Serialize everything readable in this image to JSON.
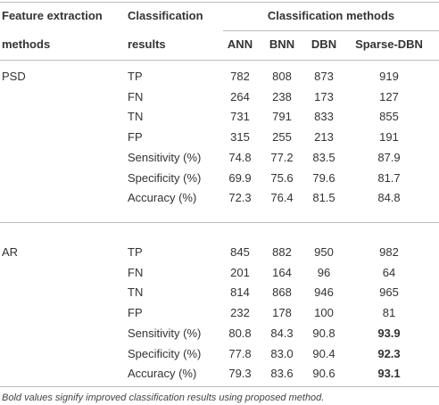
{
  "table": {
    "header": {
      "row1": [
        "Feature extraction",
        "Classification",
        "Classification methods"
      ],
      "row2": [
        "methods",
        "results",
        "ANN",
        "BNN",
        "DBN",
        "Sparse-DBN"
      ]
    },
    "groups": [
      {
        "name": "PSD",
        "rows": [
          {
            "label": "TP",
            "values": [
              "782",
              "808",
              "873",
              "919"
            ]
          },
          {
            "label": "FN",
            "values": [
              "264",
              "238",
              "173",
              "127"
            ]
          },
          {
            "label": "TN",
            "values": [
              "731",
              "791",
              "833",
              "855"
            ]
          },
          {
            "label": "FP",
            "values": [
              "315",
              "255",
              "213",
              "191"
            ]
          },
          {
            "label": "Sensitivity (%)",
            "values": [
              "74.8",
              "77.2",
              "83.5",
              "87.9"
            ]
          },
          {
            "label": "Specificity (%)",
            "values": [
              "69.9",
              "75.6",
              "79.6",
              "81.7"
            ]
          },
          {
            "label": "Accuracy (%)",
            "values": [
              "72.3",
              "76.4",
              "81.5",
              "84.8"
            ]
          }
        ]
      },
      {
        "name": "AR",
        "rows": [
          {
            "label": "TP",
            "values": [
              "845",
              "882",
              "950",
              "982"
            ]
          },
          {
            "label": "FN",
            "values": [
              "201",
              "164",
              "96",
              "64"
            ]
          },
          {
            "label": "TN",
            "values": [
              "814",
              "868",
              "946",
              "965"
            ]
          },
          {
            "label": "FP",
            "values": [
              "232",
              "178",
              "100",
              "81"
            ]
          },
          {
            "label": "Sensitivity (%)",
            "values": [
              "80.8",
              "84.3",
              "90.8",
              "93.9"
            ],
            "bold": [
              3
            ]
          },
          {
            "label": "Specificity (%)",
            "values": [
              "77.8",
              "83.0",
              "90.4",
              "92.3"
            ],
            "bold": [
              3
            ]
          },
          {
            "label": "Accuracy (%)",
            "values": [
              "79.3",
              "83.6",
              "90.6",
              "93.1"
            ],
            "bold": [
              3
            ]
          }
        ]
      }
    ],
    "footnote": "Bold values signify improved classification results using proposed method."
  }
}
